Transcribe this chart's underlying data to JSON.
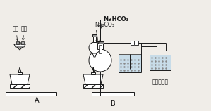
{
  "bg_color": "#f0ede8",
  "label_A": "A",
  "label_B": "B",
  "label_red_phos": "红磷",
  "label_white_phos": "白磷",
  "label_nahco3": "NaHCO₃",
  "label_na2co3": "Na₂CO₃",
  "label_limewater": "澄清石灰水",
  "line_color": "#1a1a1a",
  "water_color": "#c8dce8"
}
